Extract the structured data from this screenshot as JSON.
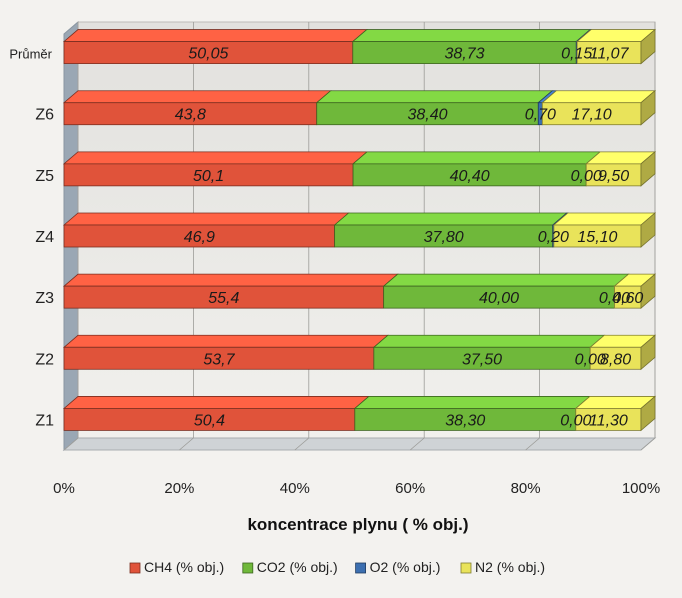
{
  "chart_data": {
    "type": "bar",
    "orientation": "horizontal",
    "stacked": "percent",
    "categories": [
      "Z1",
      "Z2",
      "Z3",
      "Z4",
      "Z5",
      "Z6",
      "Průměr"
    ],
    "series": [
      {
        "name": "CH4 (% obj.)",
        "color": "#e0533a",
        "values": [
          50.4,
          53.7,
          55.4,
          46.9,
          50.1,
          43.8,
          50.05
        ],
        "labels": [
          "50,4",
          "53,7",
          "55,4",
          "46,9",
          "50,1",
          "43,8",
          "50,05"
        ]
      },
      {
        "name": "CO2 (% obj.)",
        "color": "#6fb83a",
        "values": [
          38.3,
          37.5,
          40.0,
          37.8,
          40.4,
          38.4,
          38.73
        ],
        "labels": [
          "38,30",
          "37,50",
          "40,00",
          "37,80",
          "40,40",
          "38,40",
          "38,73"
        ]
      },
      {
        "name": "O2 (% obj.)",
        "color": "#3c6fb0",
        "values": [
          0.0,
          0.0,
          0.0,
          0.2,
          0.0,
          0.7,
          0.15
        ],
        "labels": [
          "0,00",
          "0,00",
          "0,00",
          "0,20",
          "0,00",
          "0,70",
          "0,15"
        ]
      },
      {
        "name": "N2 (% obj.)",
        "color": "#e9e35a",
        "values": [
          11.3,
          8.8,
          4.6,
          15.1,
          9.5,
          17.1,
          11.07
        ],
        "labels": [
          "11,30",
          "8,80",
          "4,60",
          "15,10",
          "9,50",
          "17,10",
          "11,07"
        ]
      }
    ],
    "xlabel": "koncentrace plynu ( % obj.)",
    "ylabel": "",
    "xlim": [
      0,
      100
    ],
    "x_ticks": [
      "0%",
      "20%",
      "40%",
      "60%",
      "80%",
      "100%"
    ],
    "grid": true,
    "legend_position": "bottom"
  }
}
